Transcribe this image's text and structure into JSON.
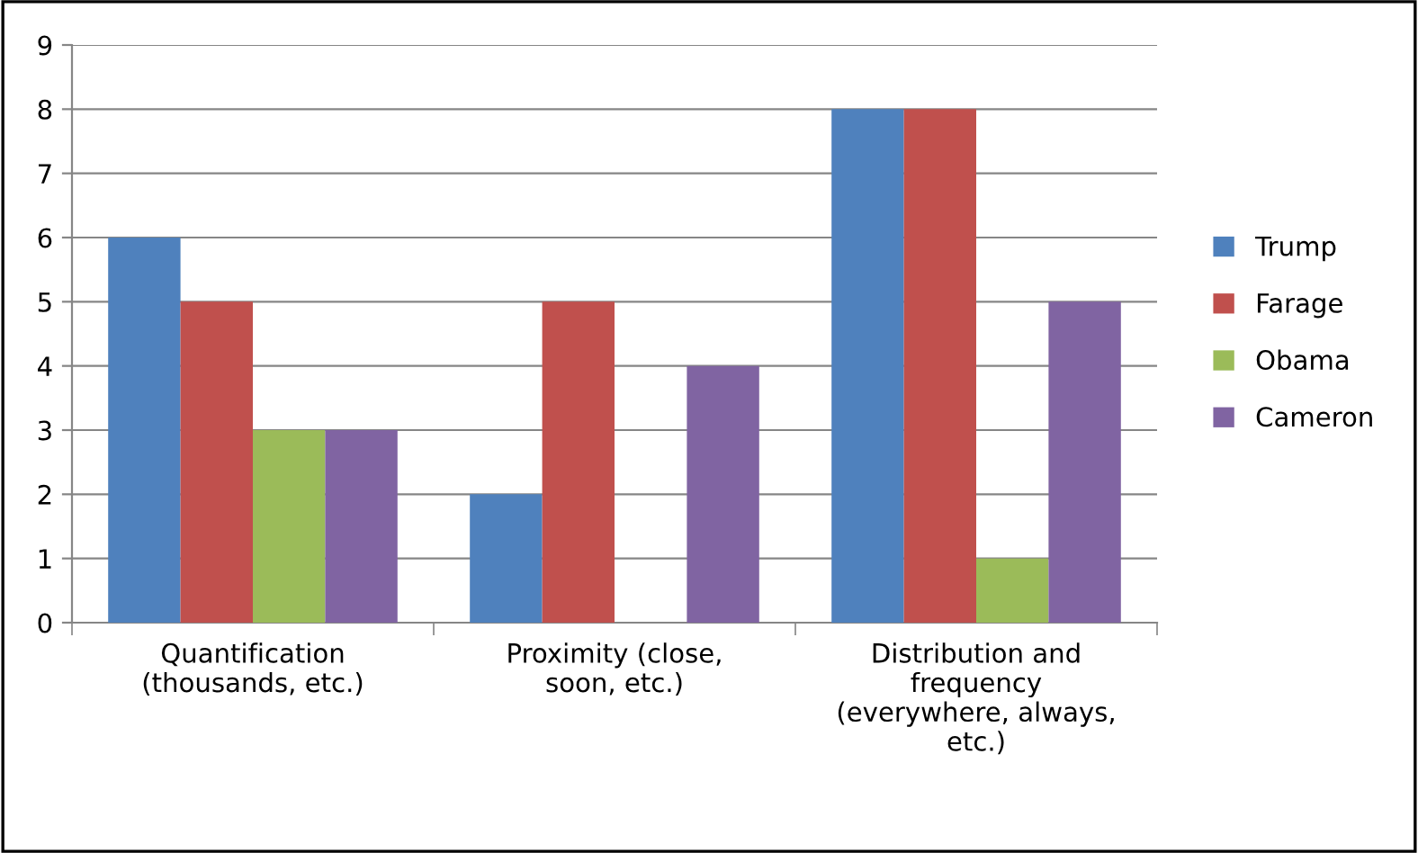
{
  "chart_data": {
    "type": "bar",
    "categories": [
      "Quantification\n(thousands, etc.)",
      "Proximity (close,\nsoon, etc.)",
      "Distribution and\nfrequency\n(everywhere, always,\netc.)"
    ],
    "series": [
      {
        "name": "Trump",
        "color": "#4f81bd",
        "values": [
          6,
          2,
          8
        ]
      },
      {
        "name": "Farage",
        "color": "#c0504d",
        "values": [
          5,
          5,
          8
        ]
      },
      {
        "name": "Obama",
        "color": "#9bbb59",
        "values": [
          3,
          0,
          1
        ]
      },
      {
        "name": "Cameron",
        "color": "#8064a2",
        "values": [
          3,
          4,
          5
        ]
      }
    ],
    "ylim": [
      0,
      9
    ],
    "yticks": [
      0,
      1,
      2,
      3,
      4,
      5,
      6,
      7,
      8,
      9
    ],
    "grid": "y",
    "legend": "right"
  }
}
